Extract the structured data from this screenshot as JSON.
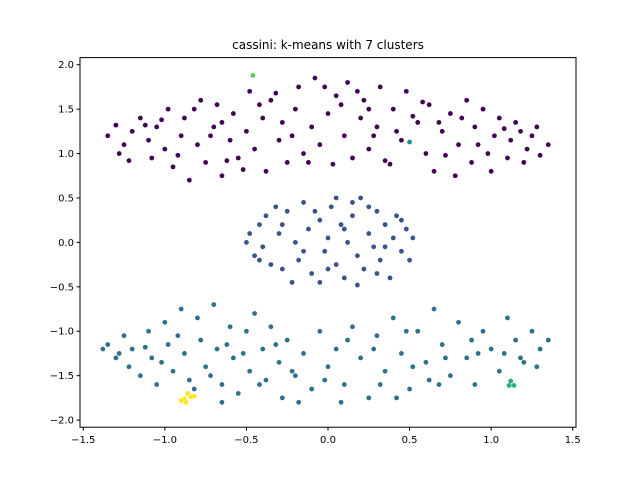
{
  "chart_data": {
    "type": "scatter",
    "title": "cassini: k-means with 7 clusters",
    "xlabel": "",
    "ylabel": "",
    "xlim": [
      -1.52,
      1.52
    ],
    "ylim": [
      -2.08,
      2.08
    ],
    "x_ticks": [
      -1.5,
      -1.0,
      -0.5,
      0.0,
      0.5,
      1.0,
      1.5
    ],
    "y_ticks": [
      -2.0,
      -1.5,
      -1.0,
      -0.5,
      0.0,
      0.5,
      1.0,
      1.5,
      2.0
    ],
    "x_tick_labels": [
      "−1.5",
      "−1.0",
      "−0.5",
      "0.0",
      "0.5",
      "1.0",
      "1.5"
    ],
    "y_tick_labels": [
      "−2.0",
      "−1.5",
      "−1.0",
      "−0.5",
      "0.0",
      "0.5",
      "1.0",
      "1.5",
      "2.0"
    ],
    "grid": false,
    "legend": "none",
    "series": [
      {
        "color": "#440154",
        "points": [
          [
            -1.35,
            1.2
          ],
          [
            -1.3,
            1.32
          ],
          [
            -1.25,
            1.1
          ],
          [
            -1.28,
            1.0
          ],
          [
            -1.2,
            1.25
          ],
          [
            -1.15,
            1.4
          ],
          [
            -1.1,
            1.15
          ],
          [
            -1.08,
            0.95
          ],
          [
            -1.05,
            1.3
          ],
          [
            -1.0,
            1.05
          ],
          [
            -0.98,
            1.5
          ],
          [
            -0.95,
            0.85
          ],
          [
            -0.9,
            1.2
          ],
          [
            -0.88,
            1.4
          ],
          [
            -0.85,
            0.7
          ],
          [
            -0.8,
            1.1
          ],
          [
            -0.78,
            1.6
          ],
          [
            -0.75,
            0.9
          ],
          [
            -0.7,
            1.3
          ],
          [
            -0.68,
            1.55
          ],
          [
            -0.65,
            0.75
          ],
          [
            -0.6,
            1.15
          ],
          [
            -0.58,
            1.45
          ],
          [
            -0.55,
            0.95
          ],
          [
            -0.5,
            1.25
          ],
          [
            -0.48,
            1.7
          ],
          [
            -0.45,
            1.05
          ],
          [
            -0.4,
            1.4
          ],
          [
            -0.38,
            0.8
          ],
          [
            -0.35,
            1.6
          ],
          [
            -0.3,
            1.15
          ],
          [
            -0.28,
            1.35
          ],
          [
            -0.25,
            0.9
          ],
          [
            -0.2,
            1.5
          ],
          [
            -0.18,
            1.75
          ],
          [
            -0.15,
            1.0
          ],
          [
            -0.1,
            1.3
          ],
          [
            -0.08,
            1.85
          ],
          [
            -0.05,
            1.1
          ],
          [
            0.0,
            1.45
          ],
          [
            0.03,
            0.88
          ],
          [
            0.05,
            1.65
          ],
          [
            0.1,
            1.2
          ],
          [
            0.12,
            1.8
          ],
          [
            0.15,
            0.95
          ],
          [
            0.2,
            1.4
          ],
          [
            0.22,
            1.6
          ],
          [
            0.25,
            1.05
          ],
          [
            0.3,
            1.3
          ],
          [
            0.32,
            1.75
          ],
          [
            0.35,
            0.92
          ],
          [
            0.4,
            1.5
          ],
          [
            0.45,
            1.15
          ],
          [
            0.48,
            1.7
          ],
          [
            0.55,
            1.35
          ],
          [
            0.6,
            1.0
          ],
          [
            0.62,
            1.55
          ],
          [
            0.65,
            0.8
          ],
          [
            0.7,
            1.25
          ],
          [
            0.75,
            1.45
          ],
          [
            0.78,
            0.75
          ],
          [
            0.8,
            1.1
          ],
          [
            0.85,
            1.6
          ],
          [
            0.88,
            0.9
          ],
          [
            0.9,
            1.3
          ],
          [
            0.95,
            1.5
          ],
          [
            1.0,
            0.8
          ],
          [
            1.02,
            1.2
          ],
          [
            1.05,
            1.4
          ],
          [
            1.1,
            0.95
          ],
          [
            1.12,
            1.15
          ],
          [
            1.15,
            1.35
          ],
          [
            1.2,
            0.9
          ],
          [
            1.22,
            1.05
          ],
          [
            1.25,
            1.2
          ],
          [
            1.28,
            1.3
          ],
          [
            1.3,
            0.98
          ],
          [
            1.35,
            1.1
          ],
          [
            -1.22,
            0.92
          ],
          [
            -1.12,
            1.32
          ],
          [
            -0.92,
            0.98
          ],
          [
            -0.72,
            1.2
          ],
          [
            -0.62,
            0.92
          ],
          [
            -0.42,
            1.55
          ],
          [
            -0.22,
            1.2
          ],
          [
            0.08,
            1.55
          ],
          [
            0.28,
            1.2
          ],
          [
            0.52,
            1.42
          ],
          [
            0.72,
            0.98
          ],
          [
            0.92,
            1.1
          ],
          [
            1.18,
            1.25
          ],
          [
            -1.02,
            1.38
          ],
          [
            -0.82,
            1.5
          ],
          [
            -0.32,
            1.68
          ],
          [
            0.18,
            1.7
          ],
          [
            0.42,
            1.25
          ],
          [
            0.68,
            1.35
          ],
          [
            0.98,
            1.0
          ],
          [
            1.08,
            1.28
          ],
          [
            -0.52,
            0.82
          ],
          [
            -0.12,
            0.9
          ],
          [
            0.38,
            0.88
          ],
          [
            0.58,
            1.58
          ],
          [
            0.82,
            1.4
          ],
          [
            -0.02,
            1.75
          ],
          [
            -0.65,
            1.35
          ],
          [
            0.25,
            1.5
          ]
        ]
      },
      {
        "color": "#3b528b",
        "points": [
          [
            -0.5,
            0.0
          ],
          [
            -0.48,
            0.1
          ],
          [
            -0.45,
            -0.15
          ],
          [
            -0.42,
            0.2
          ],
          [
            -0.4,
            -0.05
          ],
          [
            -0.38,
            0.3
          ],
          [
            -0.35,
            -0.25
          ],
          [
            -0.3,
            0.1
          ],
          [
            -0.28,
            -0.3
          ],
          [
            -0.25,
            0.35
          ],
          [
            -0.2,
            0.0
          ],
          [
            -0.18,
            -0.2
          ],
          [
            -0.15,
            0.45
          ],
          [
            -0.12,
            0.15
          ],
          [
            -0.1,
            -0.35
          ],
          [
            -0.05,
            0.25
          ],
          [
            -0.02,
            -0.1
          ],
          [
            0.0,
            0.05
          ],
          [
            0.02,
            0.4
          ],
          [
            0.05,
            -0.25
          ],
          [
            0.08,
            0.2
          ],
          [
            0.1,
            -0.4
          ],
          [
            0.12,
            0.0
          ],
          [
            0.15,
            0.3
          ],
          [
            0.18,
            -0.15
          ],
          [
            0.2,
            0.5
          ],
          [
            0.22,
            -0.3
          ],
          [
            0.25,
            0.1
          ],
          [
            0.28,
            -0.05
          ],
          [
            0.3,
            0.35
          ],
          [
            0.32,
            -0.2
          ],
          [
            0.35,
            0.2
          ],
          [
            0.38,
            -0.4
          ],
          [
            0.4,
            0.05
          ],
          [
            0.42,
            0.3
          ],
          [
            0.45,
            -0.1
          ],
          [
            0.48,
            0.15
          ],
          [
            0.5,
            -0.2
          ],
          [
            0.52,
            0.05
          ],
          [
            -0.32,
            0.4
          ],
          [
            -0.22,
            -0.45
          ],
          [
            0.05,
            0.5
          ],
          [
            0.18,
            -0.48
          ],
          [
            -0.08,
            0.35
          ],
          [
            0.25,
            0.4
          ],
          [
            -0.42,
            -0.2
          ],
          [
            0.45,
            0.25
          ],
          [
            0.0,
            -0.3
          ],
          [
            -0.15,
            -0.1
          ],
          [
            0.1,
            0.15
          ],
          [
            0.3,
            -0.35
          ],
          [
            -0.28,
            0.2
          ],
          [
            0.35,
            -0.05
          ],
          [
            -0.05,
            -0.45
          ],
          [
            0.15,
            0.45
          ]
        ]
      },
      {
        "color": "#2c728e",
        "points": [
          [
            -1.38,
            -1.2
          ],
          [
            -1.35,
            -1.15
          ],
          [
            -1.3,
            -1.3
          ],
          [
            -1.25,
            -1.05
          ],
          [
            -1.22,
            -1.4
          ],
          [
            -1.2,
            -1.2
          ],
          [
            -1.15,
            -1.5
          ],
          [
            -1.1,
            -1.0
          ],
          [
            -1.08,
            -1.3
          ],
          [
            -1.05,
            -1.6
          ],
          [
            -1.0,
            -0.9
          ],
          [
            -0.98,
            -1.15
          ],
          [
            -0.95,
            -1.45
          ],
          [
            -0.9,
            -0.75
          ],
          [
            -0.88,
            -1.25
          ],
          [
            -0.85,
            -1.55
          ],
          [
            -0.8,
            -0.85
          ],
          [
            -0.78,
            -1.1
          ],
          [
            -0.75,
            -1.4
          ],
          [
            -0.7,
            -0.7
          ],
          [
            -0.68,
            -1.2
          ],
          [
            -0.65,
            -1.6
          ],
          [
            -0.6,
            -0.95
          ],
          [
            -0.58,
            -1.3
          ],
          [
            -0.55,
            -1.7
          ],
          [
            -0.5,
            -1.0
          ],
          [
            -0.48,
            -1.45
          ],
          [
            -0.45,
            -0.8
          ],
          [
            -0.4,
            -1.2
          ],
          [
            -0.38,
            -1.55
          ],
          [
            -0.35,
            -0.95
          ],
          [
            -0.3,
            -1.35
          ],
          [
            -0.28,
            -1.75
          ],
          [
            -0.25,
            -1.1
          ],
          [
            -0.2,
            -1.5
          ],
          [
            -0.15,
            -1.25
          ],
          [
            -0.1,
            -1.65
          ],
          [
            -0.05,
            -1.0
          ],
          [
            0.0,
            -1.4
          ],
          [
            0.05,
            -1.2
          ],
          [
            0.1,
            -1.6
          ],
          [
            0.15,
            -0.95
          ],
          [
            0.2,
            -1.3
          ],
          [
            0.25,
            -1.75
          ],
          [
            0.3,
            -1.05
          ],
          [
            0.35,
            -1.45
          ],
          [
            0.4,
            -0.85
          ],
          [
            0.45,
            -1.25
          ],
          [
            0.5,
            -1.65
          ],
          [
            0.55,
            -1.0
          ],
          [
            0.6,
            -1.35
          ],
          [
            0.65,
            -0.75
          ],
          [
            0.7,
            -1.15
          ],
          [
            0.75,
            -1.5
          ],
          [
            0.8,
            -0.9
          ],
          [
            0.85,
            -1.3
          ],
          [
            0.9,
            -1.6
          ],
          [
            0.95,
            -1.0
          ],
          [
            1.0,
            -1.2
          ],
          [
            1.05,
            -1.45
          ],
          [
            1.1,
            -0.85
          ],
          [
            1.15,
            -1.1
          ],
          [
            1.2,
            -1.35
          ],
          [
            1.25,
            -1.0
          ],
          [
            1.3,
            -1.2
          ],
          [
            1.35,
            -1.1
          ],
          [
            -1.28,
            -1.25
          ],
          [
            -1.12,
            -1.18
          ],
          [
            -0.92,
            -1.05
          ],
          [
            -0.72,
            -1.5
          ],
          [
            -0.62,
            -1.15
          ],
          [
            -0.42,
            -1.6
          ],
          [
            -0.22,
            -1.45
          ],
          [
            -0.02,
            -1.55
          ],
          [
            0.12,
            -1.1
          ],
          [
            0.32,
            -1.6
          ],
          [
            0.52,
            -1.4
          ],
          [
            0.72,
            -1.3
          ],
          [
            0.92,
            -1.25
          ],
          [
            1.18,
            -1.3
          ],
          [
            -1.02,
            -1.35
          ],
          [
            -0.82,
            -1.65
          ],
          [
            -0.52,
            -1.25
          ],
          [
            -0.32,
            -1.15
          ],
          [
            0.08,
            -1.8
          ],
          [
            0.28,
            -1.2
          ],
          [
            0.48,
            -1.0
          ],
          [
            0.68,
            -1.6
          ],
          [
            0.88,
            -1.1
          ],
          [
            1.08,
            -1.25
          ],
          [
            -0.18,
            -1.8
          ],
          [
            0.42,
            -1.75
          ],
          [
            -0.65,
            -1.8
          ],
          [
            0.62,
            -1.55
          ],
          [
            1.28,
            -1.4
          ]
        ]
      },
      {
        "color": "#21918c",
        "points": [
          [
            0.5,
            1.13
          ]
        ]
      },
      {
        "color": "#28ae80",
        "points": [
          [
            1.12,
            -1.56
          ],
          [
            1.14,
            -1.61
          ],
          [
            1.11,
            -1.61
          ]
        ]
      },
      {
        "color": "#5ec962",
        "points": [
          [
            -0.46,
            1.88
          ]
        ]
      },
      {
        "color": "#fde725",
        "points": [
          [
            -0.9,
            -1.78
          ],
          [
            -0.87,
            -1.8
          ],
          [
            -0.84,
            -1.74
          ],
          [
            -0.86,
            -1.7
          ],
          [
            -0.82,
            -1.73
          ],
          [
            -0.88,
            -1.76
          ]
        ]
      }
    ]
  }
}
